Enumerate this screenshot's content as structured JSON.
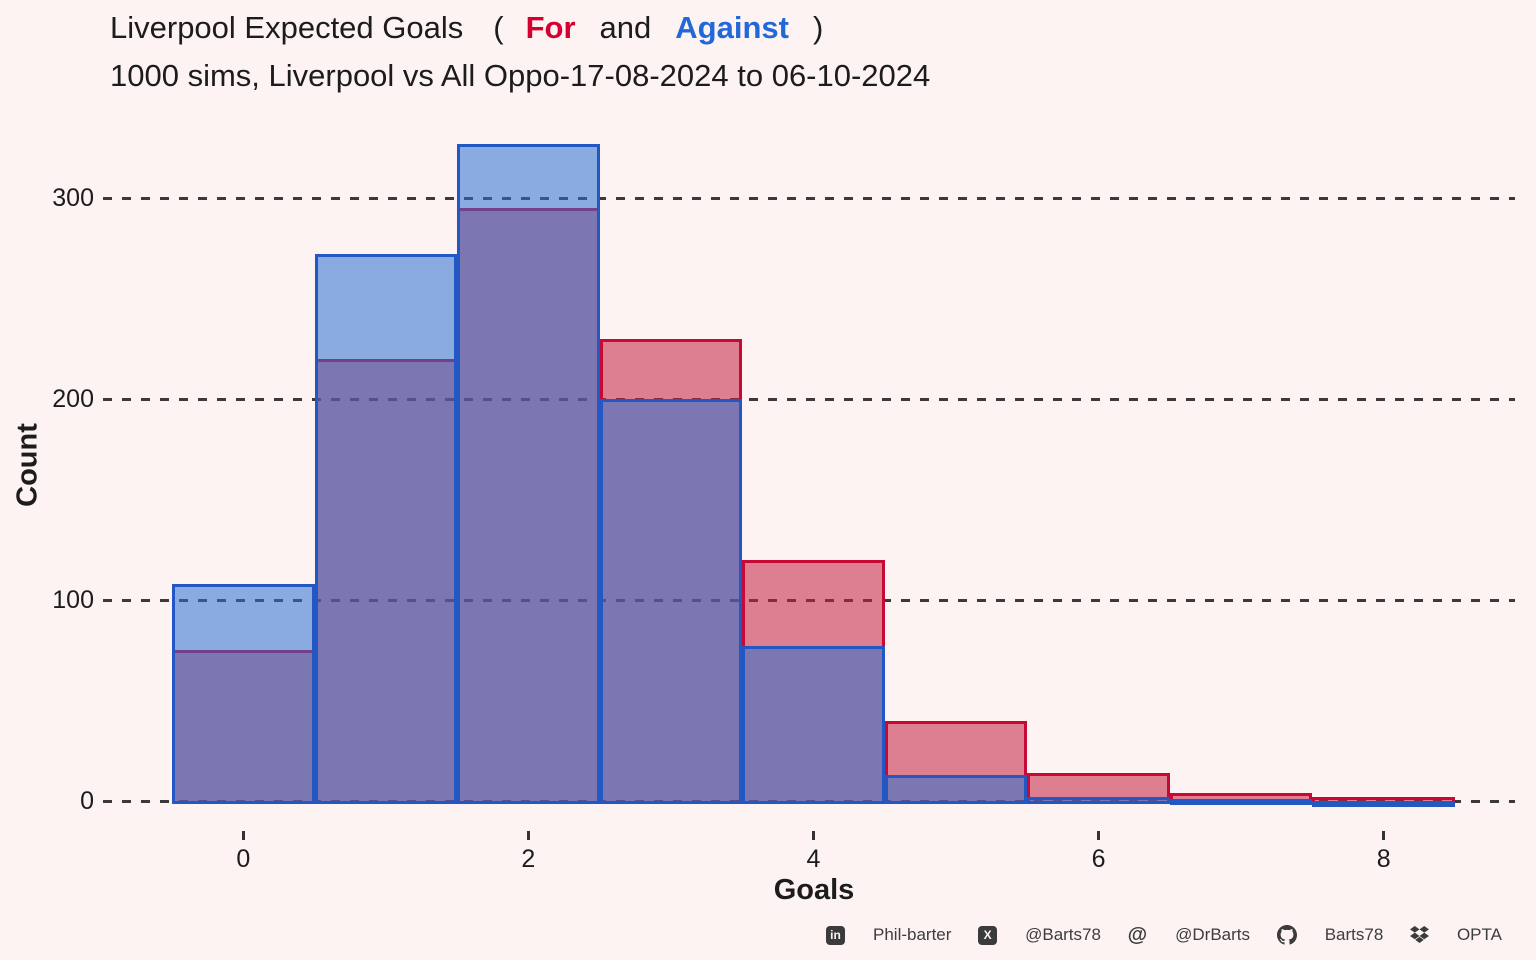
{
  "header": {
    "title_prefix": "Liverpool Expected Goals",
    "paren_open": "(",
    "for_label": "For",
    "and_label": "and",
    "against_label": "Against",
    "paren_close": ")",
    "subtitle": "1000 sims,  Liverpool vs All Oppo-17-08-2024 to 06-10-2024"
  },
  "colors": {
    "background": "#fdf3f2",
    "text": "#1c1c1c",
    "for_accent": "#d40030",
    "against_accent": "#2368d9",
    "for_border": "#c70a33",
    "against_border": "#2257c4",
    "for_fill": "rgba(195,31,65,0.55)",
    "against_fill": "rgba(44,111,208,0.55)",
    "gridline": "#3a3a3a",
    "tick": "#333333",
    "footer_text": "#3d3d3d",
    "icon": "#3b3b3b"
  },
  "chart_data": {
    "type": "bar",
    "subtype": "overlaid-histogram",
    "title": "Liverpool Expected Goals ( For and Against )",
    "subtitle": "1000 sims,  Liverpool vs All Oppo-17-08-2024 to 06-10-2024",
    "xlabel": "Goals",
    "ylabel": "Count",
    "categories": [
      0,
      1,
      2,
      3,
      4,
      5,
      6,
      7,
      8
    ],
    "series": [
      {
        "name": "For",
        "color": "red",
        "values": [
          75,
          220,
          295,
          230,
          120,
          40,
          14,
          4,
          2
        ]
      },
      {
        "name": "Against",
        "color": "blue",
        "values": [
          108,
          272,
          327,
          200,
          77,
          13,
          2,
          1,
          0
        ]
      }
    ],
    "xticks": [
      0,
      2,
      4,
      6,
      8
    ],
    "yticks": [
      0,
      100,
      200,
      300
    ],
    "xlim": [
      -0.5,
      8.5
    ],
    "ylim": [
      0,
      340
    ],
    "grid": "horizontal-dashed",
    "legend": "in-title",
    "n_sims": "1000"
  },
  "footer": {
    "items": [
      {
        "icon": "linkedin-icon",
        "label": "Phil-barter"
      },
      {
        "icon": "x-icon",
        "label": "@Barts78"
      },
      {
        "icon": "mastodon-icon",
        "label": "@DrBarts"
      },
      {
        "icon": "github-icon",
        "label": "Barts78"
      },
      {
        "icon": "dropbox-icon",
        "label": "OPTA"
      }
    ]
  }
}
